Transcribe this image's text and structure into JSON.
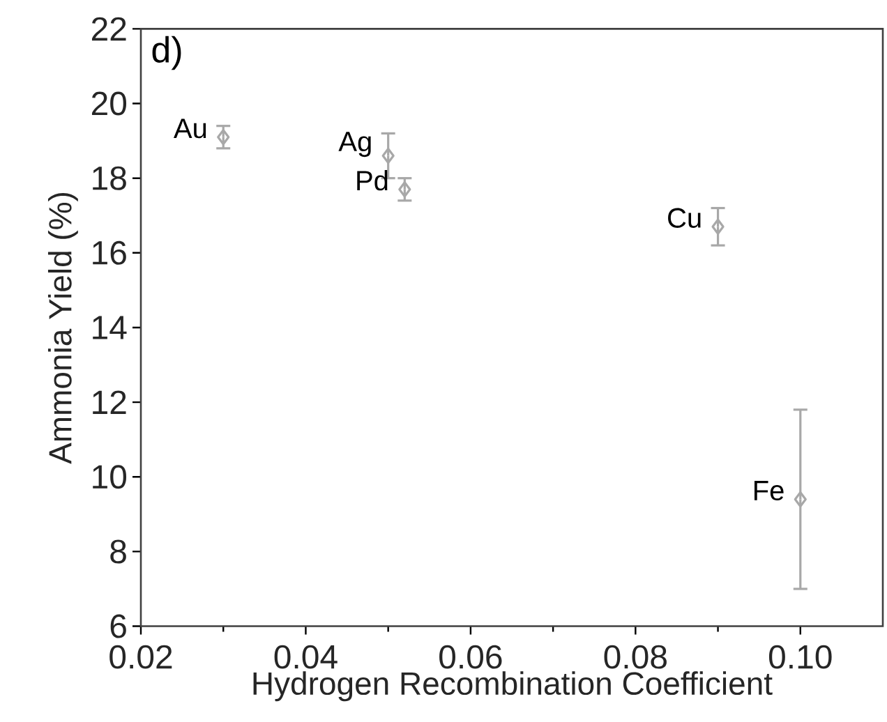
{
  "chart_data": {
    "type": "scatter",
    "xlabel": "Hydrogen Recombination Coefficient",
    "ylabel": "Ammonia Yield (%)",
    "xlim": [
      0.02,
      0.11
    ],
    "ylim": [
      6,
      22
    ],
    "xticks": [
      0.02,
      0.04,
      0.06,
      {
        "value": 0.08,
        "label": "0.08"
      },
      {
        "value": 0.1,
        "label": "0.10"
      }
    ],
    "yticks": [
      6,
      8,
      10,
      12,
      14,
      16,
      18,
      20,
      22
    ],
    "marker": "diamond",
    "series": [
      {
        "color": "#a8a8a8",
        "x": [
          0.03,
          0.05,
          0.052,
          0.09,
          0.1
        ],
        "values": [
          19.1,
          18.6,
          17.7,
          16.7,
          9.4
        ],
        "errors": [
          0.3,
          0.6,
          0.3,
          0.5,
          2.4
        ]
      }
    ],
    "annotations": [
      "d)",
      {
        "text": "Au",
        "x": 0.03,
        "y": 19.1
      },
      {
        "text": "Ag",
        "x": 0.05,
        "y": 18.6
      },
      {
        "text": "Pd",
        "x": 0.052,
        "y": 17.7
      },
      {
        "text": "Cu",
        "x": 0.09,
        "y": 16.7
      },
      {
        "text": "Fe",
        "x": 0.1,
        "y": 9.4
      }
    ]
  }
}
